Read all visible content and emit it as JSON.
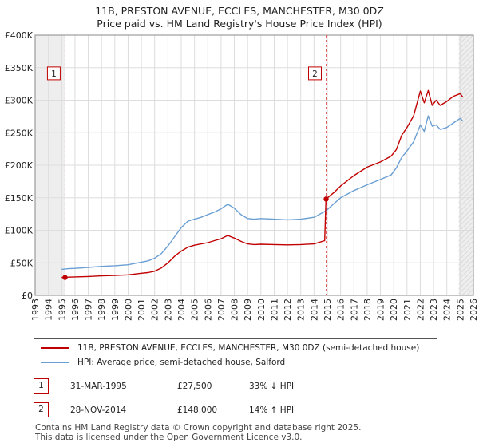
{
  "title_line1": "11B, PRESTON AVENUE, ECCLES, MANCHESTER, M30 0DZ",
  "title_line2": "Price paid vs. HM Land Registry's House Price Index (HPI)",
  "legend": {
    "property_label": "11B, PRESTON AVENUE, ECCLES, MANCHESTER, M30 0DZ (semi-detached house)",
    "hpi_label": "HPI: Average price, semi-detached house, Salford"
  },
  "sales": [
    {
      "num": "1",
      "date": "31-MAR-1995",
      "price": "£27,500",
      "hpi_diff": "33% ↓ HPI"
    },
    {
      "num": "2",
      "date": "28-NOV-2014",
      "price": "£148,000",
      "hpi_diff": "14% ↑ HPI"
    }
  ],
  "footer_line1": "Contains HM Land Registry data © Crown copyright and database right 2025.",
  "footer_line2": "This data is licensed under the Open Government Licence v3.0.",
  "colors": {
    "property": "#c00000",
    "hpi": "#6a9fd4",
    "grid": "#dddddd",
    "marker_line": "#e06060"
  },
  "chart_data": {
    "type": "line",
    "xlim": [
      1993,
      2026
    ],
    "ylim": [
      0,
      400000
    ],
    "yticks": [
      0,
      50000,
      100000,
      150000,
      200000,
      250000,
      300000,
      350000,
      400000
    ],
    "ytick_labels": [
      "£0",
      "£50K",
      "£100K",
      "£150K",
      "£200K",
      "£250K",
      "£300K",
      "£350K",
      "£400K"
    ],
    "xticks": [
      "1993",
      "1994",
      "1995",
      "1996",
      "1997",
      "1998",
      "1999",
      "2000",
      "2001",
      "2002",
      "2003",
      "2004",
      "2005",
      "2006",
      "2007",
      "2008",
      "2009",
      "2010",
      "2011",
      "2012",
      "2013",
      "2014",
      "2015",
      "2016",
      "2017",
      "2018",
      "2019",
      "2020",
      "2021",
      "2022",
      "2023",
      "2024",
      "2025",
      "2026"
    ],
    "grid": true,
    "series": [
      {
        "name": "HPI: Average price, semi-detached house, Salford",
        "x": [
          1995.0,
          1995.5,
          1996.0,
          1997.0,
          1998.0,
          1999.0,
          2000.0,
          2001.0,
          2001.5,
          2002.0,
          2002.5,
          2003.0,
          2003.5,
          2004.0,
          2004.5,
          2005.0,
          2005.5,
          2006.0,
          2006.5,
          2007.0,
          2007.5,
          2008.0,
          2008.5,
          2009.0,
          2009.5,
          2010.0,
          2011.0,
          2012.0,
          2013.0,
          2014.0,
          2014.9,
          2015.5,
          2016.0,
          2017.0,
          2018.0,
          2019.0,
          2019.8,
          2020.2,
          2020.6,
          2021.0,
          2021.5,
          2022.0,
          2022.3,
          2022.6,
          2022.9,
          2023.2,
          2023.5,
          2024.0,
          2024.5,
          2025.0,
          2025.2
        ],
        "values": [
          40000,
          41000,
          41500,
          43000,
          44500,
          45500,
          47000,
          51000,
          53000,
          57000,
          64000,
          76000,
          90000,
          104000,
          114000,
          117000,
          120000,
          124000,
          128000,
          133000,
          140000,
          134000,
          124000,
          118000,
          117000,
          118000,
          117000,
          116000,
          117000,
          120000,
          130000,
          141000,
          150000,
          161000,
          170000,
          178000,
          185000,
          196000,
          212000,
          222000,
          236000,
          262000,
          252000,
          276000,
          260000,
          262000,
          255000,
          258000,
          265000,
          272000,
          268000
        ]
      },
      {
        "name": "11B, PRESTON AVENUE, ECCLES, MANCHESTER, M30 0DZ (semi-detached house)",
        "x": [
          1995.0,
          1995.5,
          1996.0,
          1997.0,
          1998.0,
          1999.0,
          2000.0,
          2001.0,
          2001.5,
          2002.0,
          2002.5,
          2003.0,
          2003.5,
          2004.0,
          2004.5,
          2005.0,
          2005.5,
          2006.0,
          2006.5,
          2007.0,
          2007.5,
          2008.0,
          2008.5,
          2009.0,
          2009.5,
          2010.0,
          2011.0,
          2012.0,
          2013.0,
          2014.0,
          2014.8,
          2014.9,
          2015.5,
          2016.0,
          2017.0,
          2018.0,
          2019.0,
          2019.8,
          2020.2,
          2020.6,
          2021.0,
          2021.5,
          2022.0,
          2022.3,
          2022.6,
          2022.9,
          2023.2,
          2023.5,
          2024.0,
          2024.5,
          2025.0,
          2025.2
        ],
        "values": [
          27500,
          28000,
          28300,
          29000,
          30000,
          30500,
          31500,
          34000,
          35000,
          37000,
          42000,
          50000,
          60000,
          68000,
          74000,
          77000,
          79000,
          81000,
          84000,
          87000,
          92000,
          88000,
          83000,
          79000,
          78000,
          78500,
          78000,
          77500,
          78000,
          79000,
          84000,
          148000,
          158000,
          168000,
          184000,
          197000,
          205000,
          214000,
          224000,
          246000,
          258000,
          276000,
          314000,
          296000,
          315000,
          292000,
          300000,
          292000,
          298000,
          306000,
          310000,
          305000
        ]
      }
    ],
    "sale_markers": [
      {
        "label": "1",
        "x": 1995.25,
        "value": 27500
      },
      {
        "label": "2",
        "x": 2014.91,
        "value": 148000
      }
    ],
    "shaded_ranges": [
      [
        1993,
        1995.25
      ],
      [
        2024.9,
        2026
      ]
    ]
  }
}
